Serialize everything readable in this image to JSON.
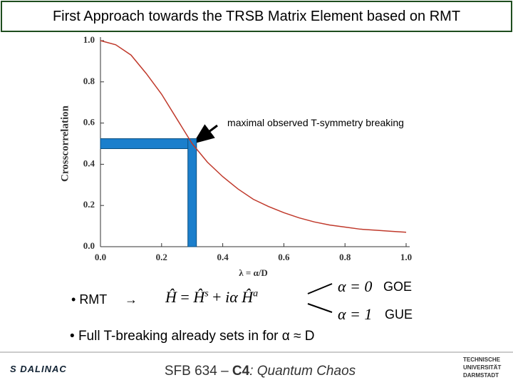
{
  "header": {
    "title": "First Approach towards the TRSB Matrix Element based on RMT"
  },
  "chart_data": {
    "type": "line",
    "x": [
      0,
      0.05,
      0.1,
      0.15,
      0.2,
      0.25,
      0.3,
      0.35,
      0.4,
      0.45,
      0.5,
      0.55,
      0.6,
      0.65,
      0.7,
      0.75,
      0.8,
      0.85,
      0.9,
      0.95,
      1.0
    ],
    "series": [
      {
        "color": "#c0392b",
        "values": [
          1.0,
          0.98,
          0.93,
          0.84,
          0.74,
          0.62,
          0.5,
          0.41,
          0.34,
          0.28,
          0.23,
          0.195,
          0.165,
          0.14,
          0.12,
          0.105,
          0.095,
          0.085,
          0.08,
          0.075,
          0.07
        ]
      }
    ],
    "xlim": [
      0,
      1
    ],
    "ylim": [
      0,
      1
    ],
    "xticks": [
      {
        "value": 0,
        "label": "0.0"
      },
      {
        "value": 0.2,
        "label": "0.2"
      },
      {
        "value": 0.4,
        "label": "0.4"
      },
      {
        "value": 0.6,
        "label": "0.6"
      },
      {
        "value": 0.8,
        "label": "0.8"
      },
      {
        "value": 1,
        "label": "1.0"
      }
    ],
    "yticks": [
      {
        "value": 0,
        "label": "0.0"
      },
      {
        "value": 0.2,
        "label": "0.2"
      },
      {
        "value": 0.4,
        "label": "0.4"
      },
      {
        "value": 0.6,
        "label": "0.6"
      },
      {
        "value": 0.8,
        "label": "0.8"
      },
      {
        "value": 1,
        "label": "1.0"
      }
    ],
    "xlabel": "λ = α/D",
    "ylabel": "Crosscorrelation",
    "marker": {
      "x": 0.3,
      "y": 0.5,
      "color": "#1b7fcc"
    },
    "annotation": "maximal observed T-symmetry breaking"
  },
  "bullets": [
    "RMT",
    "Full T-breaking already sets in for α ≈ D"
  ],
  "formula": {
    "lhs": "Ĥ",
    "eq": "=",
    "t1": "Ĥ",
    "s1": "s",
    "plus": "+",
    "coef": "iα",
    "t2": "Ĥ",
    "s2": "a"
  },
  "cases": [
    {
      "cond": "α = 0",
      "label": "GOE"
    },
    {
      "cond": "α = 1",
      "label": "GUE"
    }
  ],
  "footer": {
    "pre": "SFB 634 – ",
    "bold": "C4",
    "post": ": Quantum Chaos",
    "left_logo": "S DALINAC",
    "right_logo": [
      "TECHNISCHE",
      "UNIVERSITÄT",
      "DARMSTADT"
    ]
  }
}
